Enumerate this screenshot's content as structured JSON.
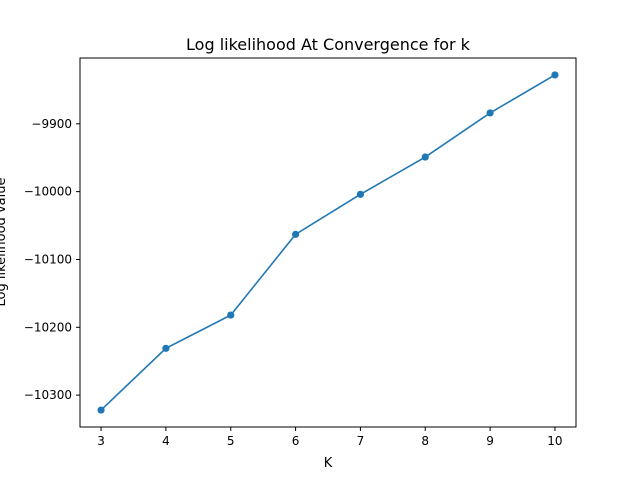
{
  "chart_data": {
    "type": "line",
    "title": "Log likelihood At Convergence for k",
    "xlabel": "K",
    "ylabel": "Log likelihood value",
    "x": [
      3,
      4,
      5,
      6,
      7,
      8,
      9,
      10
    ],
    "series": [
      {
        "values": [
          -10322,
          -10231,
          -10182,
          -10063,
          -10004,
          -9949,
          -9884,
          -9828
        ],
        "color": "#1f77b4",
        "marker": "circle"
      }
    ],
    "xlim": [
      2.675,
      10.325
    ],
    "ylim": [
      -10347,
      -9803
    ],
    "xticks": [
      3,
      4,
      5,
      6,
      7,
      8,
      9,
      10
    ],
    "yticks": [
      -10300,
      -10200,
      -10100,
      -10000,
      -9900
    ],
    "ytick_labels": [
      "−10300",
      "−10200",
      "−10100",
      "−10000",
      "−9900"
    ],
    "grid": false,
    "legend": false
  }
}
